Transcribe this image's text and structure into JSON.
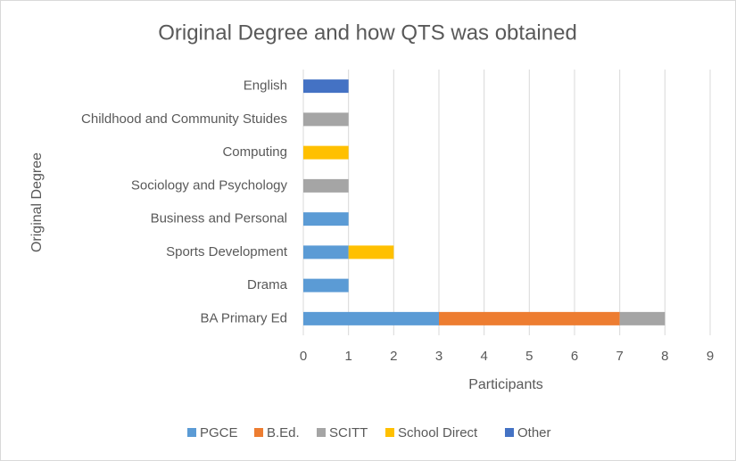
{
  "chart_data": {
    "type": "stacked-bar-horizontal",
    "title": "Original Degree and how QTS was obtained",
    "x_label": "Participants",
    "y_label": "Original Degree",
    "categories": [
      "English",
      "Childhood and Community Stuides",
      "Computing",
      "Sociology and Psychology",
      "Business and Personal",
      "Sports Development",
      "Drama",
      "BA Primary Ed"
    ],
    "series": [
      {
        "name": "PGCE",
        "color": "#5b9bd5",
        "values": [
          0,
          0,
          0,
          0,
          1,
          1,
          1,
          3
        ]
      },
      {
        "name": "B.Ed.",
        "color": "#ed7d31",
        "values": [
          0,
          0,
          0,
          0,
          0,
          0,
          0,
          4
        ]
      },
      {
        "name": "SCITT",
        "color": "#a5a5a5",
        "values": [
          0,
          1,
          0,
          1,
          0,
          0,
          0,
          1
        ]
      },
      {
        "name": "School Direct",
        "color": "#ffc000",
        "values": [
          0,
          0,
          1,
          0,
          0,
          1,
          0,
          0
        ]
      },
      {
        "name": "Other",
        "color": "#4472c4",
        "values": [
          1,
          0,
          0,
          0,
          0,
          0,
          0,
          0
        ]
      }
    ],
    "xlim": [
      0,
      9
    ],
    "xticks": [
      0,
      1,
      2,
      3,
      4,
      5,
      6,
      7,
      8,
      9
    ],
    "grid": true,
    "legend": "bottom"
  }
}
